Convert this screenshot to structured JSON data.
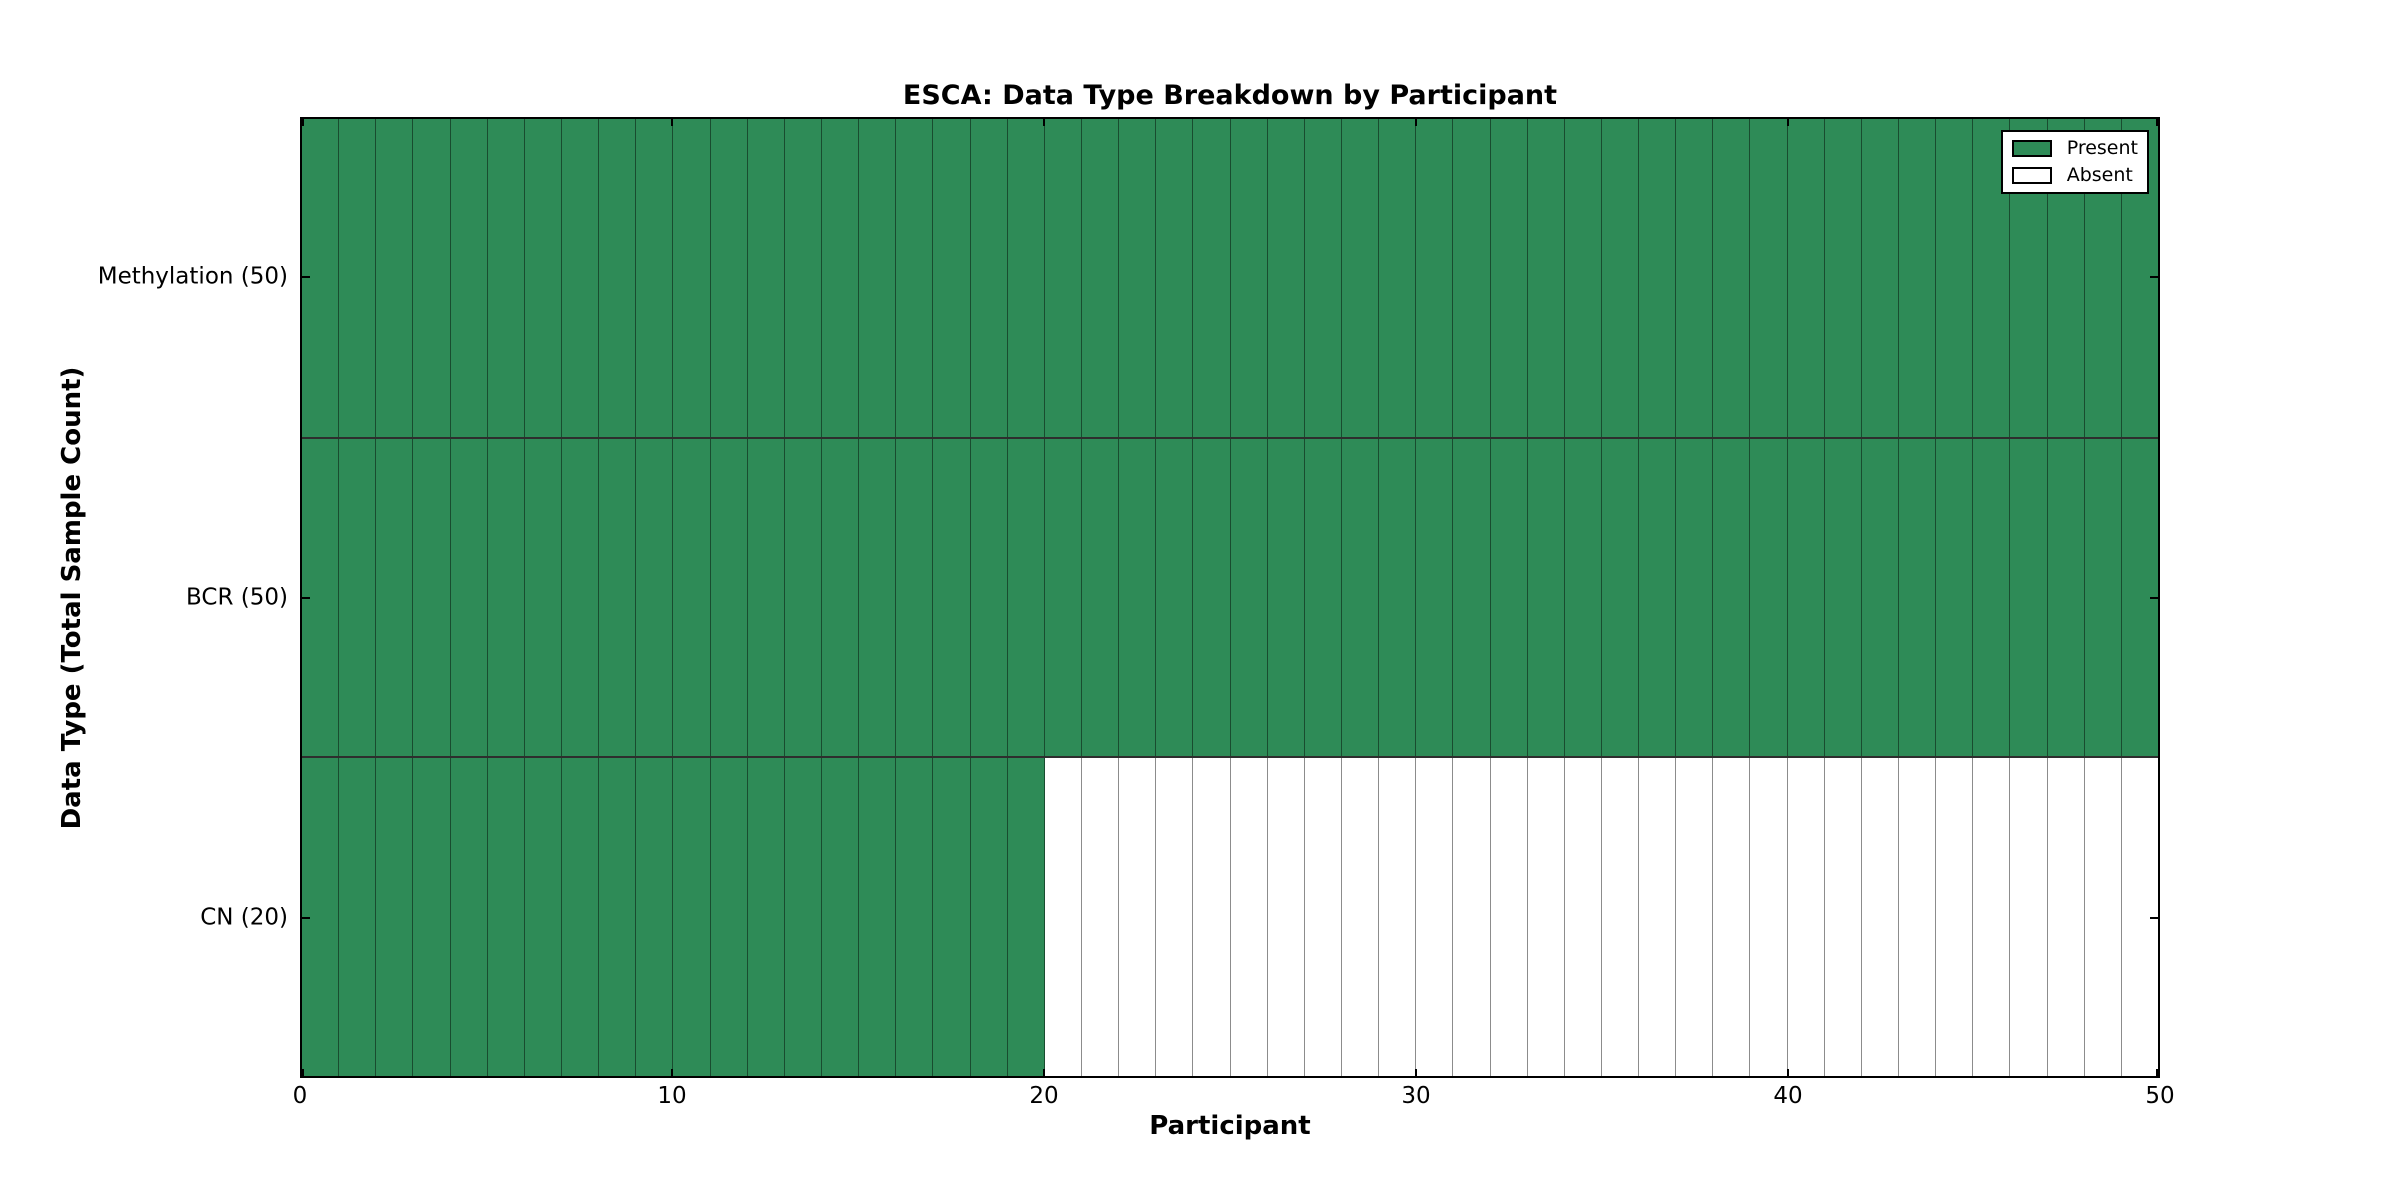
{
  "chart_data": {
    "type": "heatmap",
    "title": "ESCA: Data Type Breakdown by Participant",
    "xlabel": "Participant",
    "ylabel": "Data Type (Total Sample Count)",
    "xlim": [
      0,
      50
    ],
    "n_participants": 50,
    "x_ticks": [
      0,
      10,
      20,
      30,
      40,
      50
    ],
    "rows": [
      {
        "label": "Methylation (50)",
        "total_samples": 50,
        "present_count": 50
      },
      {
        "label": "BCR (50)",
        "total_samples": 50,
        "present_count": 50
      },
      {
        "label": "CN (20)",
        "total_samples": 20,
        "present_count": 20
      }
    ],
    "legend": [
      {
        "label": "Present",
        "color": "#2e8b57"
      },
      {
        "label": "Absent",
        "color": "#ffffff"
      }
    ],
    "legend_position": "upper right",
    "colors": {
      "present": "#2e8b57",
      "absent": "#ffffff",
      "grid_line": "#000000",
      "background": "#ffffff"
    },
    "grid": true
  }
}
